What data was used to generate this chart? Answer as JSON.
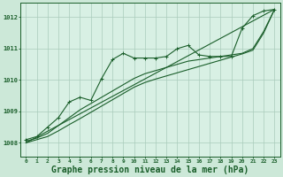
{
  "background_color": "#cce8d8",
  "plot_background": "#d8f0e4",
  "grid_color": "#aaccbb",
  "line_color": "#1a5e2a",
  "xlabel": "Graphe pression niveau de la mer (hPa)",
  "xlabel_fontsize": 7.0,
  "yticks": [
    1008,
    1009,
    1010,
    1011,
    1012
  ],
  "xtick_labels": [
    "0",
    "1",
    "2",
    "3",
    "4",
    "5",
    "6",
    "7",
    "8",
    "9",
    "10",
    "11",
    "12",
    "13",
    "14",
    "15",
    "16",
    "17",
    "18",
    "19",
    "20",
    "21",
    "22",
    "23"
  ],
  "xlim": [
    -0.5,
    23.5
  ],
  "ylim": [
    1007.55,
    1012.45
  ],
  "series1_x": [
    0,
    1,
    2,
    3,
    4,
    5,
    6,
    7,
    8,
    9,
    10,
    11,
    12,
    13,
    14,
    15,
    16,
    17,
    18,
    19,
    20,
    21,
    22,
    23
  ],
  "series1_y": [
    1008.1,
    1008.2,
    1008.5,
    1008.8,
    1009.3,
    1009.45,
    1009.35,
    1010.05,
    1010.65,
    1010.85,
    1010.7,
    1010.7,
    1010.7,
    1010.75,
    1011.0,
    1011.1,
    1010.8,
    1010.75,
    1010.75,
    1010.75,
    1011.65,
    1012.05,
    1012.2,
    1012.25
  ],
  "series2_x": [
    0,
    1,
    2,
    3,
    4,
    5,
    6,
    7,
    8,
    9,
    10,
    11,
    12,
    13,
    14,
    15,
    16,
    17,
    18,
    19,
    20,
    21,
    22,
    23
  ],
  "series2_y": [
    1008.05,
    1008.15,
    1008.3,
    1008.55,
    1008.8,
    1009.05,
    1009.25,
    1009.45,
    1009.65,
    1009.85,
    1010.05,
    1010.2,
    1010.3,
    1010.4,
    1010.5,
    1010.6,
    1010.65,
    1010.7,
    1010.75,
    1010.8,
    1010.85,
    1011.0,
    1011.55,
    1012.25
  ],
  "series3_x": [
    0,
    1,
    2,
    3,
    4,
    5,
    6,
    7,
    8,
    9,
    10,
    11,
    12,
    13,
    14,
    15,
    16,
    17,
    18,
    19,
    20,
    21,
    22,
    23
  ],
  "series3_y": [
    1008.0,
    1008.1,
    1008.2,
    1008.38,
    1008.58,
    1008.77,
    1008.97,
    1009.17,
    1009.37,
    1009.57,
    1009.77,
    1009.92,
    1010.03,
    1010.13,
    1010.23,
    1010.33,
    1010.43,
    1010.53,
    1010.63,
    1010.73,
    1010.83,
    1010.95,
    1011.5,
    1012.25
  ],
  "series4_x": [
    0,
    23
  ],
  "series4_y": [
    1008.0,
    1012.25
  ]
}
